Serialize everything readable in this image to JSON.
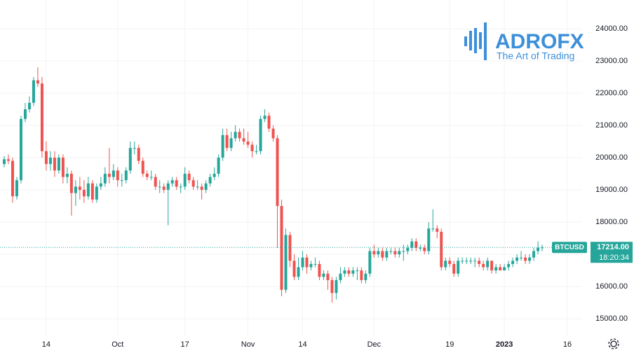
{
  "chart_data": {
    "type": "candlestick",
    "logo": {
      "name": "ADROFX",
      "tagline": "The Art of Trading"
    },
    "up_color": "#26a69a",
    "down_color": "#ef5350",
    "grid": true,
    "xlim": [
      -1,
      137.5
    ],
    "ylim": [
      14460,
      24890
    ],
    "xticks": [
      {
        "value": 10,
        "label": "14"
      },
      {
        "value": 27,
        "label": "Oct"
      },
      {
        "value": 43,
        "label": "17"
      },
      {
        "value": 58,
        "label": "Nov"
      },
      {
        "value": 71,
        "label": "14"
      },
      {
        "value": 88,
        "label": "Dec"
      },
      {
        "value": 106,
        "label": "19"
      },
      {
        "value": 119,
        "label": "2023"
      },
      {
        "value": 134,
        "label": "16"
      }
    ],
    "yticks": [
      {
        "value": 15000,
        "label": "15000.00"
      },
      {
        "value": 16000,
        "label": "16000.00"
      },
      {
        "value": 17000,
        "label": "17000.00"
      },
      {
        "value": 18000,
        "label": "18000.00"
      },
      {
        "value": 19000,
        "label": "19000.00"
      },
      {
        "value": 20000,
        "label": "20000.00"
      },
      {
        "value": 21000,
        "label": "21000.00"
      },
      {
        "value": 22000,
        "label": "22000.00"
      },
      {
        "value": 23000,
        "label": "23000.00"
      },
      {
        "value": 24000,
        "label": "24000.00"
      }
    ],
    "last_price": {
      "symbol": "BTCUSD",
      "value": 17214,
      "label": "17214.00",
      "countdown": "18:20:34"
    },
    "candles": [
      [
        19800,
        20050,
        19700,
        19950
      ],
      [
        19950,
        20100,
        19800,
        19900
      ],
      [
        19900,
        20000,
        18600,
        18800
      ],
      [
        18800,
        19400,
        18700,
        19300
      ],
      [
        19300,
        21300,
        19200,
        21200
      ],
      [
        21200,
        21700,
        21100,
        21500
      ],
      [
        21500,
        21900,
        21400,
        21700
      ],
      [
        21700,
        22500,
        21600,
        22400
      ],
      [
        22400,
        22800,
        22200,
        22300
      ],
      [
        22300,
        22500,
        20000,
        20200
      ],
      [
        20200,
        20500,
        19600,
        19800
      ],
      [
        19800,
        20200,
        19600,
        20000
      ],
      [
        20000,
        20200,
        19400,
        19600
      ],
      [
        19600,
        20100,
        19500,
        20000
      ],
      [
        20000,
        20100,
        19200,
        19400
      ],
      [
        19400,
        19700,
        19200,
        19500
      ],
      [
        19500,
        19600,
        18200,
        18900
      ],
      [
        18900,
        19300,
        18500,
        19100
      ],
      [
        19100,
        19400,
        18700,
        19000
      ],
      [
        19000,
        19300,
        18600,
        18800
      ],
      [
        18800,
        19400,
        18700,
        19200
      ],
      [
        19200,
        19300,
        18600,
        18700
      ],
      [
        18700,
        19200,
        18600,
        19100
      ],
      [
        19100,
        19400,
        19000,
        19200
      ],
      [
        19200,
        19700,
        19100,
        19500
      ],
      [
        19500,
        20300,
        19200,
        19400
      ],
      [
        19400,
        19800,
        19300,
        19600
      ],
      [
        19600,
        19700,
        19100,
        19300
      ],
      [
        19300,
        19500,
        19100,
        19300
      ],
      [
        19300,
        19700,
        19200,
        19600
      ],
      [
        19600,
        20500,
        19500,
        20300
      ],
      [
        20300,
        20500,
        20100,
        20300
      ],
      [
        20300,
        20400,
        19800,
        19900
      ],
      [
        19900,
        20000,
        19400,
        19500
      ],
      [
        19500,
        19600,
        19300,
        19400
      ],
      [
        19400,
        19600,
        19300,
        19400
      ],
      [
        19400,
        19500,
        19000,
        19100
      ],
      [
        19100,
        19300,
        18900,
        19100
      ],
      [
        19100,
        19200,
        18900,
        19000
      ],
      [
        19000,
        19300,
        17900,
        19200
      ],
      [
        19200,
        19400,
        19100,
        19300
      ],
      [
        19300,
        19400,
        19000,
        19100
      ],
      [
        19100,
        19200,
        18900,
        19100
      ],
      [
        19100,
        19700,
        19000,
        19500
      ],
      [
        19500,
        19600,
        19200,
        19300
      ],
      [
        19300,
        19400,
        19000,
        19100
      ],
      [
        19100,
        19300,
        19000,
        19100
      ],
      [
        19100,
        19200,
        18700,
        19000
      ],
      [
        19000,
        19300,
        18900,
        19200
      ],
      [
        19200,
        19500,
        19100,
        19400
      ],
      [
        19400,
        19700,
        19300,
        19500
      ],
      [
        19500,
        20100,
        19400,
        20000
      ],
      [
        20000,
        20900,
        19900,
        20700
      ],
      [
        20700,
        20900,
        20200,
        20300
      ],
      [
        20300,
        20800,
        20200,
        20600
      ],
      [
        20600,
        21000,
        20500,
        20800
      ],
      [
        20800,
        20900,
        20500,
        20600
      ],
      [
        20600,
        20900,
        20400,
        20500
      ],
      [
        20500,
        20800,
        20300,
        20400
      ],
      [
        20400,
        20500,
        20000,
        20200
      ],
      [
        20200,
        20400,
        20100,
        20200
      ],
      [
        20200,
        21300,
        20100,
        21200
      ],
      [
        21200,
        21500,
        21100,
        21300
      ],
      [
        21300,
        21400,
        20800,
        20900
      ],
      [
        20900,
        21000,
        20500,
        20600
      ],
      [
        20600,
        20700,
        17200,
        18500
      ],
      [
        18500,
        18700,
        15700,
        15900
      ],
      [
        15900,
        17800,
        15800,
        17600
      ],
      [
        17600,
        17700,
        16600,
        16800
      ],
      [
        16800,
        17000,
        16200,
        16300
      ],
      [
        16300,
        16900,
        16200,
        16600
      ],
      [
        16600,
        17100,
        16500,
        16900
      ],
      [
        16900,
        17000,
        16400,
        16600
      ],
      [
        16600,
        16800,
        16500,
        16700
      ],
      [
        16700,
        16900,
        16600,
        16700
      ],
      [
        16700,
        16800,
        16200,
        16300
      ],
      [
        16300,
        16500,
        16200,
        16400
      ],
      [
        16400,
        16500,
        15900,
        16200
      ],
      [
        16200,
        16300,
        15500,
        15800
      ],
      [
        15800,
        16300,
        15600,
        16200
      ],
      [
        16200,
        16600,
        16100,
        16400
      ],
      [
        16400,
        16600,
        16300,
        16500
      ],
      [
        16500,
        16600,
        16300,
        16400
      ],
      [
        16400,
        16600,
        16300,
        16500
      ],
      [
        16500,
        16600,
        16200,
        16500
      ],
      [
        16500,
        16600,
        16100,
        16200
      ],
      [
        16200,
        16500,
        16100,
        16400
      ],
      [
        16400,
        17200,
        16300,
        17100
      ],
      [
        17100,
        17300,
        16900,
        17000
      ],
      [
        17000,
        17200,
        16900,
        17100
      ],
      [
        17100,
        17200,
        16800,
        16900
      ],
      [
        16900,
        17200,
        16800,
        17100
      ],
      [
        17100,
        17200,
        17000,
        17100
      ],
      [
        17100,
        17200,
        16900,
        17000
      ],
      [
        17000,
        17200,
        16900,
        17100
      ],
      [
        17100,
        17300,
        16800,
        17100
      ],
      [
        17100,
        17300,
        17000,
        17200
      ],
      [
        17200,
        17500,
        17100,
        17400
      ],
      [
        17400,
        17500,
        17100,
        17200
      ],
      [
        17200,
        17300,
        17100,
        17200
      ],
      [
        17200,
        17300,
        17000,
        17100
      ],
      [
        17100,
        18000,
        17000,
        17800
      ],
      [
        17800,
        18400,
        17700,
        17800
      ],
      [
        17800,
        17900,
        17500,
        17700
      ],
      [
        17700,
        17800,
        16500,
        16600
      ],
      [
        16600,
        16900,
        16500,
        16800
      ],
      [
        16800,
        16900,
        16600,
        16700
      ],
      [
        16700,
        16800,
        16300,
        16400
      ],
      [
        16400,
        16900,
        16300,
        16800
      ],
      [
        16800,
        16900,
        16700,
        16800
      ],
      [
        16800,
        16900,
        16700,
        16800
      ],
      [
        16800,
        16900,
        16700,
        16800
      ],
      [
        16800,
        16900,
        16600,
        16800
      ],
      [
        16800,
        16900,
        16600,
        16700
      ],
      [
        16700,
        16800,
        16500,
        16600
      ],
      [
        16600,
        16900,
        16500,
        16800
      ],
      [
        16800,
        16800,
        16400,
        16500
      ],
      [
        16500,
        16700,
        16400,
        16600
      ],
      [
        16600,
        16700,
        16500,
        16500
      ],
      [
        16500,
        16700,
        16500,
        16600
      ],
      [
        16600,
        16800,
        16500,
        16700
      ],
      [
        16700,
        16900,
        16600,
        16800
      ],
      [
        16800,
        17000,
        16700,
        16900
      ],
      [
        16900,
        17100,
        16800,
        16900
      ],
      [
        16900,
        17000,
        16700,
        16800
      ],
      [
        16800,
        17000,
        16700,
        16900
      ],
      [
        16900,
        17200,
        16800,
        17100
      ],
      [
        17100,
        17400,
        17000,
        17200
      ],
      [
        17200,
        17300,
        17100,
        17214
      ]
    ]
  }
}
